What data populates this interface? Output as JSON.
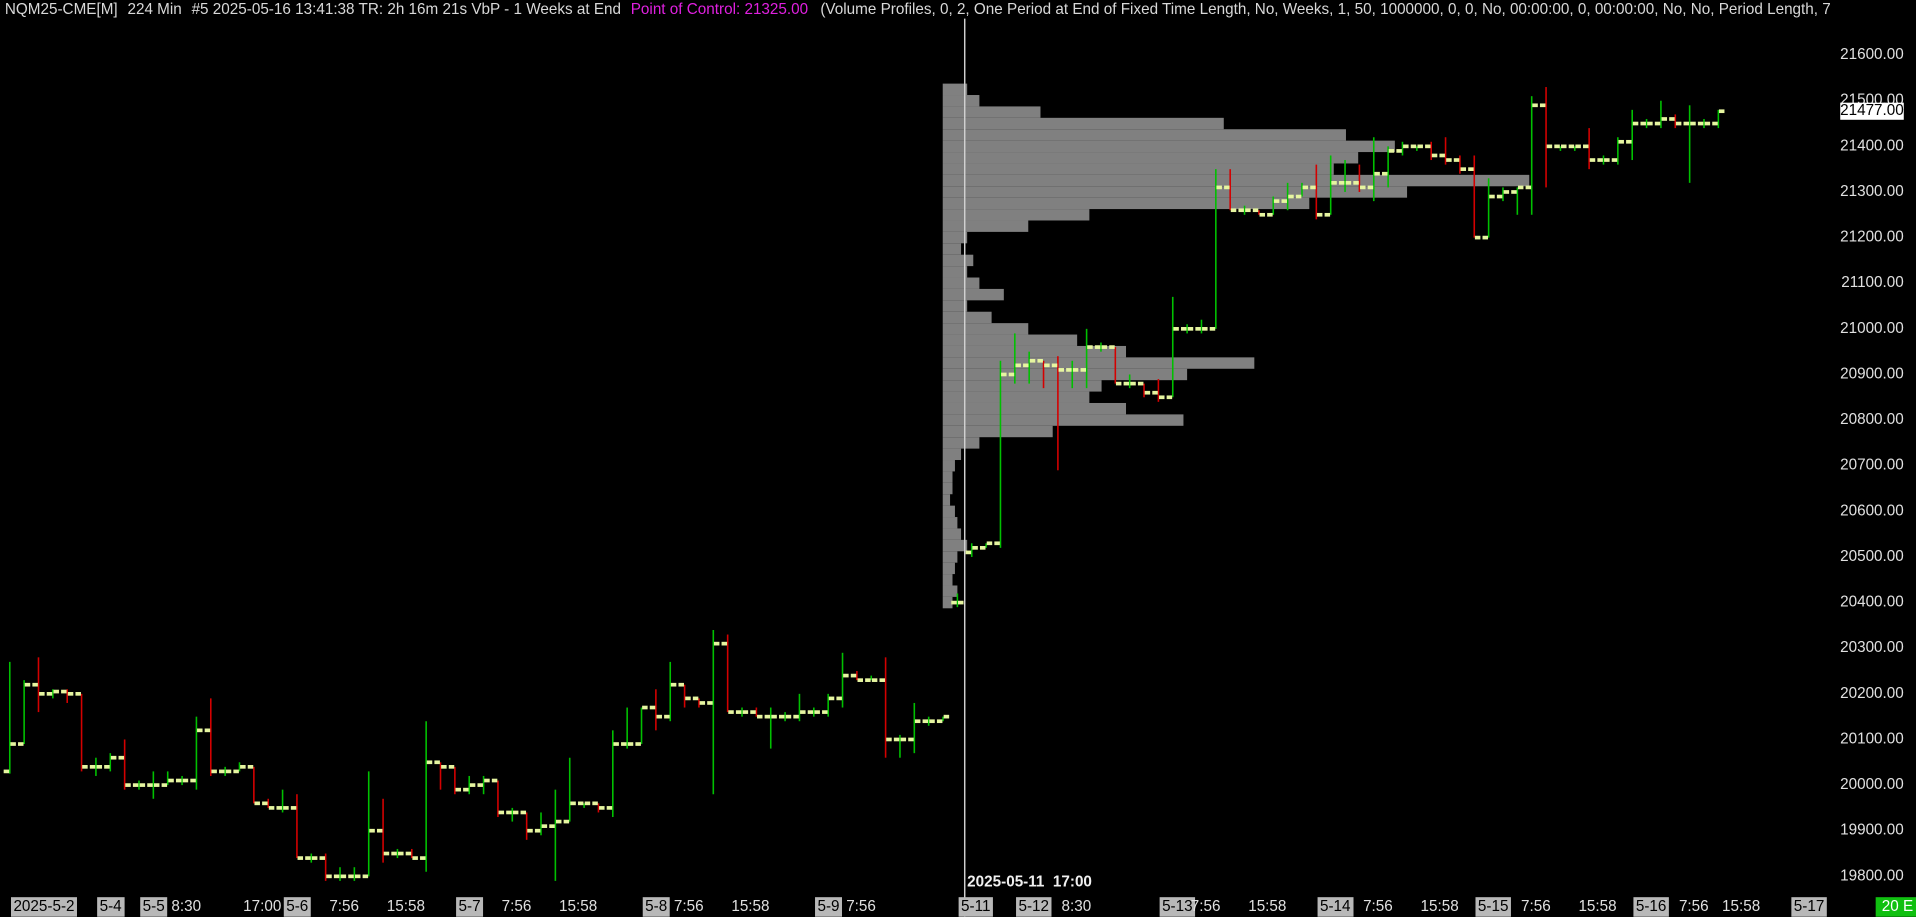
{
  "chart_data": {
    "type": "ohlc",
    "header": {
      "instrument": "NQM25-CME[M]",
      "interval": "224 Min",
      "info": "#5 2025-05-16 13:41:38 TR: 2h 16m 21s VbP - 1 Weeks at End",
      "poc": "Point of Control: 21325.00",
      "study": "(Volume Profiles, 0, 2, One Period at End of Fixed Time Length, No, Weeks, 1, 50, 1000000, 0, 0, No, 00:00:00, 0, 00:00:00, No, No, Period Length, 7"
    },
    "period_label": "2025-05-11  17:00",
    "status": "20 E",
    "up_color": "#00c000",
    "down_color": "#d40000",
    "tick_color": "#e6f5a0",
    "profile_color": "#808080",
    "categories": [
      "2025-5-2",
      null,
      null,
      null,
      null,
      null,
      "5-4",
      null,
      null,
      "5-5",
      null,
      "8:30",
      null,
      null,
      null,
      null,
      "17:00",
      null,
      null,
      "5-6",
      null,
      null,
      "7:56",
      null,
      null,
      null,
      "15:58",
      null,
      null,
      null,
      null,
      "5-7",
      null,
      null,
      "7:56",
      null,
      null,
      null,
      "15:58",
      null,
      null,
      null,
      null,
      null,
      "5-8",
      null,
      "7:56",
      null,
      null,
      null,
      "15:58",
      null,
      null,
      null,
      null,
      null,
      "5-9",
      null,
      "7:56",
      null,
      null,
      null,
      null,
      null,
      null,
      null,
      "5-11",
      null,
      null,
      null,
      "5-12",
      null,
      null,
      "8:30",
      null,
      null,
      null,
      null,
      null,
      null,
      "5-13",
      null,
      "7:56",
      null,
      null,
      null,
      "15:58",
      null,
      null,
      null,
      null,
      "5-14",
      null,
      null,
      "7:56",
      null,
      null,
      null,
      "15:58",
      null,
      null,
      null,
      "5-15",
      null,
      null,
      "7:56",
      null,
      null,
      null,
      "15:58",
      null,
      null,
      null,
      "5-16",
      null,
      null,
      "7:56",
      null,
      null,
      "15:58",
      null,
      null,
      null,
      null,
      "5-17",
      null
    ],
    "open": [
      20030,
      20090,
      20220,
      20200,
      20205,
      20200,
      20040,
      20040,
      20060,
      20000,
      20000,
      20000,
      20010,
      20010,
      20120,
      20030,
      20030,
      20040,
      19960,
      19950,
      19950,
      19840,
      19840,
      19800,
      19800,
      19800,
      19900,
      19850,
      19850,
      19840,
      20050,
      20040,
      19990,
      20000,
      20010,
      19940,
      19940,
      19900,
      19910,
      19920,
      19960,
      19960,
      19950,
      20090,
      20090,
      20170,
      20150,
      20220,
      20190,
      20180,
      20310,
      20160,
      20160,
      20150,
      20150,
      20150,
      20160,
      20160,
      20190,
      20240,
      20230,
      20230,
      20100,
      20100,
      20140,
      20140,
      20400,
      20510,
      20520,
      20530,
      20900,
      20920,
      20930,
      20920,
      20910,
      20910,
      20960,
      20960,
      20880,
      20880,
      20860,
      20850,
      21000,
      21000,
      21000,
      21310,
      21260,
      21260,
      21250,
      21280,
      21290,
      21310,
      21250,
      21320,
      21320,
      21310,
      21340,
      21390,
      21400,
      21400,
      21380,
      21370,
      21350,
      21200,
      21290,
      21300,
      21310,
      21490,
      21400,
      21400,
      21400,
      21370,
      21370,
      21410,
      21450,
      21450,
      21460,
      21450,
      21450,
      21450,
      null,
      null,
      null,
      null,
      null,
      null
    ],
    "high": [
      20270,
      20230,
      20280,
      20210,
      20210,
      20200,
      20060,
      20070,
      20100,
      20010,
      20030,
      20030,
      20020,
      20150,
      20190,
      20040,
      20050,
      20040,
      19970,
      19990,
      19980,
      19850,
      19850,
      19820,
      19820,
      20030,
      19970,
      19860,
      19860,
      20140,
      20050,
      20040,
      20020,
      20020,
      20010,
      19950,
      19940,
      19940,
      19990,
      20060,
      19960,
      19960,
      20120,
      20170,
      20170,
      20210,
      20270,
      20220,
      20190,
      20340,
      20330,
      20170,
      20170,
      20170,
      20160,
      20200,
      20170,
      20200,
      20290,
      20250,
      20240,
      20280,
      20110,
      20180,
      20150,
      20150,
      20420,
      20530,
      20530,
      20930,
      20990,
      20950,
      20930,
      20940,
      20930,
      21000,
      20970,
      20960,
      20900,
      20880,
      20890,
      21070,
      21010,
      21020,
      21350,
      21350,
      21270,
      21260,
      21290,
      21320,
      21320,
      21360,
      21380,
      21370,
      21360,
      21420,
      21400,
      21410,
      21400,
      21410,
      21420,
      21380,
      21380,
      21330,
      21310,
      21310,
      21510,
      21530,
      21400,
      21400,
      21440,
      21380,
      21420,
      21480,
      21460,
      21500,
      21470,
      21490,
      21460,
      21480,
      null,
      null,
      null,
      null,
      null,
      null
    ],
    "low": [
      20025,
      20090,
      20160,
      20190,
      20180,
      20030,
      20020,
      20030,
      19990,
      19990,
      19970,
      20000,
      20000,
      19990,
      20020,
      20020,
      20030,
      19960,
      19950,
      19940,
      19840,
      19830,
      19790,
      19790,
      19790,
      19800,
      19830,
      19840,
      19840,
      19810,
      19990,
      19980,
      19980,
      19980,
      19930,
      19920,
      19880,
      19890,
      19790,
      19920,
      19950,
      19940,
      19930,
      20080,
      20090,
      20120,
      20140,
      20170,
      20170,
      19980,
      20160,
      20150,
      20150,
      20080,
      20140,
      20140,
      20150,
      20150,
      20170,
      20230,
      20230,
      20060,
      20060,
      20070,
      20130,
      20140,
      20390,
      20500,
      20520,
      20520,
      20880,
      20880,
      20870,
      20690,
      20870,
      20870,
      20950,
      20880,
      20870,
      20850,
      20840,
      20850,
      20990,
      20990,
      21000,
      21260,
      21250,
      21250,
      21250,
      21260,
      21290,
      21240,
      21250,
      21300,
      21300,
      21280,
      21310,
      21380,
      21390,
      21370,
      21360,
      21340,
      21200,
      21200,
      21280,
      21250,
      21250,
      21310,
      21390,
      21390,
      21350,
      21360,
      21360,
      21370,
      21440,
      21440,
      21440,
      21320,
      21440,
      21440,
      null,
      null,
      null,
      null,
      null,
      null
    ],
    "close": [
      20090,
      20220,
      20200,
      20205,
      20200,
      20040,
      20040,
      20060,
      20000,
      20000,
      20000,
      20010,
      20010,
      20120,
      20030,
      20030,
      20040,
      19960,
      19950,
      19950,
      19840,
      19840,
      19800,
      19800,
      19800,
      19900,
      19850,
      19850,
      19840,
      20050,
      20040,
      19990,
      20000,
      20010,
      19940,
      19940,
      19900,
      19910,
      19920,
      19960,
      19960,
      19950,
      20090,
      20090,
      20170,
      20150,
      20220,
      20190,
      20180,
      20310,
      20160,
      20160,
      20150,
      20150,
      20150,
      20160,
      20160,
      20190,
      20240,
      20230,
      20230,
      20100,
      20100,
      20140,
      20140,
      20150,
      20400,
      20520,
      20530,
      20900,
      20920,
      20930,
      20920,
      20910,
      20910,
      20960,
      20960,
      20880,
      20880,
      20860,
      20850,
      21000,
      21000,
      21000,
      21310,
      21260,
      21260,
      21250,
      21280,
      21290,
      21310,
      21250,
      21320,
      21320,
      21310,
      21340,
      21390,
      21400,
      21400,
      21380,
      21370,
      21350,
      21200,
      21290,
      21300,
      21310,
      21490,
      21400,
      21400,
      21400,
      21370,
      21370,
      21410,
      21450,
      21450,
      21460,
      21450,
      21450,
      21450,
      21477,
      null,
      null,
      null,
      null,
      null,
      null
    ],
    "last_price": {
      "value": 21477,
      "label": "21477.00"
    },
    "volume_profile": {
      "prices": [
        21525,
        21500,
        21475,
        21450,
        21425,
        21400,
        21375,
        21350,
        21325,
        21300,
        21275,
        21250,
        21225,
        21200,
        21175,
        21150,
        21125,
        21100,
        21075,
        21050,
        21025,
        21000,
        20975,
        20950,
        20925,
        20900,
        20875,
        20850,
        20825,
        20800,
        20775,
        20750,
        20725,
        20700,
        20675,
        20650,
        20625,
        20600,
        20575,
        20550,
        20525,
        20500,
        20475,
        20450,
        20425,
        20400
      ],
      "volumes": [
        20,
        30,
        80,
        230,
        330,
        370,
        340,
        320,
        480,
        380,
        300,
        120,
        70,
        20,
        15,
        25,
        20,
        30,
        50,
        20,
        40,
        70,
        110,
        150,
        255,
        200,
        130,
        120,
        150,
        197,
        90,
        30,
        15,
        10,
        8,
        8,
        6,
        10,
        12,
        15,
        20,
        12,
        10,
        8,
        12,
        8
      ]
    },
    "ylim": [
      19757,
      21680
    ],
    "yticks": [
      {
        "value": 19800,
        "label": "19800.00"
      },
      {
        "value": 19900,
        "label": "19900.00"
      },
      {
        "value": 20000,
        "label": "20000.00"
      },
      {
        "value": 20100,
        "label": "20100.00"
      },
      {
        "value": 20200,
        "label": "20200.00"
      },
      {
        "value": 20300,
        "label": "20300.00"
      },
      {
        "value": 20400,
        "label": "20400.00"
      },
      {
        "value": 20500,
        "label": "20500.00"
      },
      {
        "value": 20600,
        "label": "20600.00"
      },
      {
        "value": 20700,
        "label": "20700.00"
      },
      {
        "value": 20800,
        "label": "20800.00"
      },
      {
        "value": 20900,
        "label": "20900.00"
      },
      {
        "value": 21000,
        "label": "21000.00"
      },
      {
        "value": 21100,
        "label": "21100.00"
      },
      {
        "value": 21200,
        "label": "21200.00"
      },
      {
        "value": 21300,
        "label": "21300.00"
      },
      {
        "value": 21400,
        "label": "21400.00"
      },
      {
        "value": 21500,
        "label": "21500.00"
      },
      {
        "value": 21600,
        "label": "21600.00"
      }
    ],
    "grid": false
  }
}
